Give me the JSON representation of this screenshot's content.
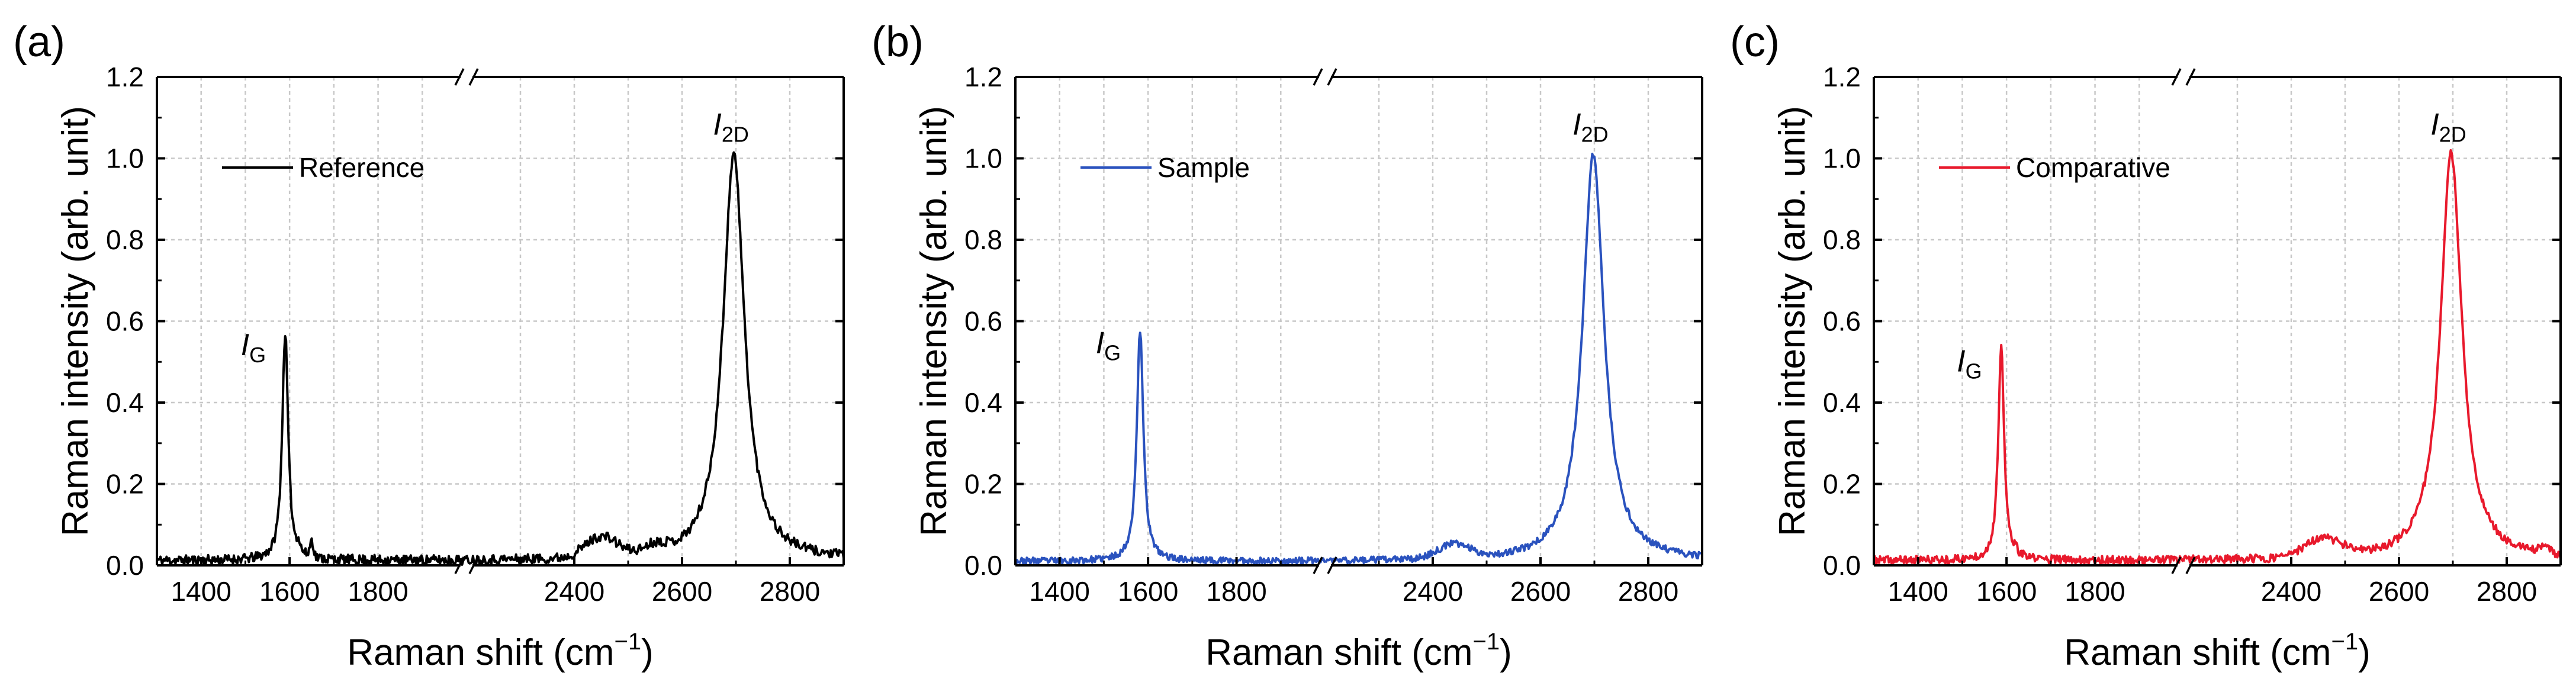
{
  "chart_data": [
    {
      "type": "line",
      "panel_label": "(a)",
      "series_name": "Reference",
      "color": "#000000",
      "xlabel": "Raman shift (cm",
      "xlabel_sup": "−1",
      "xlabel_end": ")",
      "ylabel": "Raman intensity (arb. unit)",
      "ylim": [
        0,
        1.2
      ],
      "y_ticks": [
        "0.0",
        "0.2",
        "0.4",
        "0.6",
        "0.8",
        "1.0",
        "1.2"
      ],
      "x_ticks": [
        "1400",
        "1600",
        "1800",
        "2400",
        "2600",
        "2800"
      ],
      "x_break": [
        2000,
        2200
      ],
      "x_segments": [
        [
          1300,
          2000
        ],
        [
          2200,
          2900
        ]
      ],
      "grid": true,
      "legend_position": "top-left",
      "peaks": {
        "G": {
          "position": 1590,
          "height": 0.56,
          "width": 8
        },
        "2D": {
          "position": 2696,
          "height": 1.0,
          "width": 24
        },
        "D_prime": {
          "position": 1620,
          "height": 0.02,
          "width": 4
        },
        "minor": [
          {
            "position": 1650,
            "height": 0.04,
            "width": 4
          },
          {
            "position": 2450,
            "height": 0.05,
            "width": 30
          },
          {
            "position": 2550,
            "height": 0.02,
            "width": 20
          }
        ]
      },
      "baseline": 0.012,
      "noise": 0.012,
      "seed": 11,
      "annotations": {
        "G": {
          "main": "I",
          "sub": "G"
        },
        "2D": {
          "main": "I",
          "sub": "2D"
        }
      }
    },
    {
      "type": "line",
      "panel_label": "(b)",
      "series_name": "Sample",
      "color": "#2a52be",
      "xlabel": "Raman shift (cm",
      "xlabel_sup": "−1",
      "xlabel_end": ")",
      "ylabel": "Raman intensity (arb. unit)",
      "ylim": [
        0,
        1.2
      ],
      "y_ticks": [
        "0.0",
        "0.2",
        "0.4",
        "0.6",
        "0.8",
        "1.0",
        "1.2"
      ],
      "x_ticks": [
        "1400",
        "1600",
        "1800",
        "2400",
        "2600",
        "2800"
      ],
      "x_break": [
        2000,
        2200
      ],
      "x_segments": [
        [
          1300,
          2000
        ],
        [
          2200,
          2900
        ]
      ],
      "grid": true,
      "legend_position": "top-left",
      "peaks": {
        "G": {
          "position": 1582,
          "height": 0.565,
          "width": 9
        },
        "2D": {
          "position": 2698,
          "height": 1.0,
          "width": 24
        },
        "D_prime": {
          "position": 1620,
          "height": 0.0,
          "width": 4
        },
        "minor": [
          {
            "position": 2440,
            "height": 0.035,
            "width": 30
          }
        ]
      },
      "baseline": 0.01,
      "noise": 0.008,
      "seed": 23,
      "annotations": {
        "G": {
          "main": "I",
          "sub": "G"
        },
        "2D": {
          "main": "I",
          "sub": "2D"
        }
      }
    },
    {
      "type": "line",
      "panel_label": "(c)",
      "series_name": "Comparative",
      "color": "#e8192c",
      "xlabel": "Raman shift (cm",
      "xlabel_sup": "−1",
      "xlabel_end": ")",
      "ylabel": "Raman intensity (arb. unit)",
      "ylim": [
        0,
        1.2
      ],
      "y_ticks": [
        "0.0",
        "0.2",
        "0.4",
        "0.6",
        "0.8",
        "1.0",
        "1.2"
      ],
      "x_ticks": [
        "1400",
        "1600",
        "1800",
        "2400",
        "2600",
        "2800"
      ],
      "x_break": [
        2000,
        2200
      ],
      "x_segments": [
        [
          1300,
          2000
        ],
        [
          2200,
          2900
        ]
      ],
      "grid": true,
      "legend_position": "top-left",
      "peaks": {
        "G": {
          "position": 1588,
          "height": 0.52,
          "width": 8
        },
        "2D": {
          "position": 2697,
          "height": 1.0,
          "width": 24
        },
        "D_prime": {
          "position": 1620,
          "height": 0.01,
          "width": 4
        },
        "minor": [
          {
            "position": 2460,
            "height": 0.045,
            "width": 35
          },
          {
            "position": 2870,
            "height": 0.02,
            "width": 10
          }
        ]
      },
      "baseline": 0.012,
      "noise": 0.01,
      "seed": 37,
      "annotations": {
        "G": {
          "main": "I",
          "sub": "G"
        },
        "2D": {
          "main": "I",
          "sub": "2D"
        }
      }
    }
  ]
}
